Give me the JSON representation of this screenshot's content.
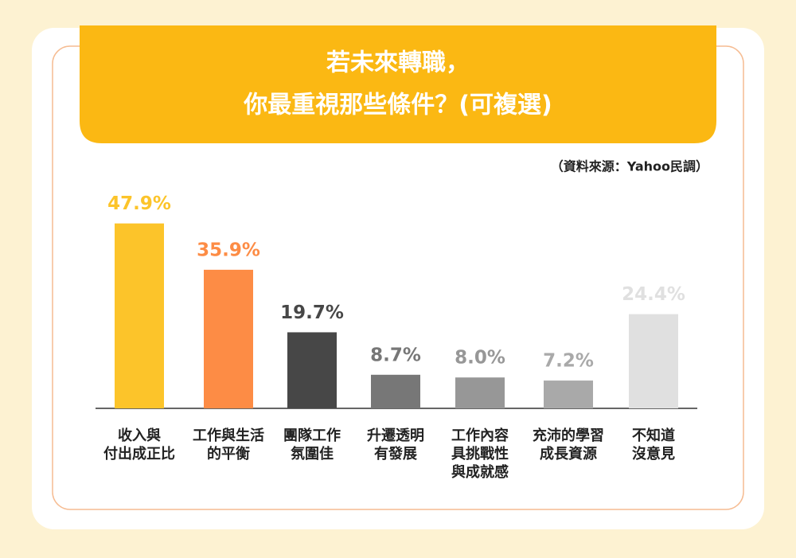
{
  "chart_data": {
    "type": "bar",
    "title": [
      "若未來轉職，",
      "你最重視那些條件？(可複選)"
    ],
    "source": "（資料來源：Yahoo民調）",
    "categories": [
      [
        "收入與",
        "付出成正比"
      ],
      [
        "工作與生活",
        "的平衡"
      ],
      [
        "團隊工作",
        "氛圍佳"
      ],
      [
        "升遷透明",
        "有發展"
      ],
      [
        "工作內容",
        "具挑戰性",
        "與成就感"
      ],
      [
        "充沛的學習",
        "成長資源"
      ],
      [
        "不知道",
        "沒意見"
      ]
    ],
    "values": [
      47.9,
      35.9,
      19.7,
      8.7,
      8.0,
      7.2,
      24.4
    ],
    "value_labels": [
      "47.9%",
      "35.9%",
      "19.7%",
      "8.7%",
      "8.0%",
      "7.2%",
      "24.4%"
    ],
    "colors": [
      "#fcc42a",
      "#fd8c45",
      "#474747",
      "#777777",
      "#979797",
      "#a9a9a9",
      "#e0e0e0"
    ]
  }
}
